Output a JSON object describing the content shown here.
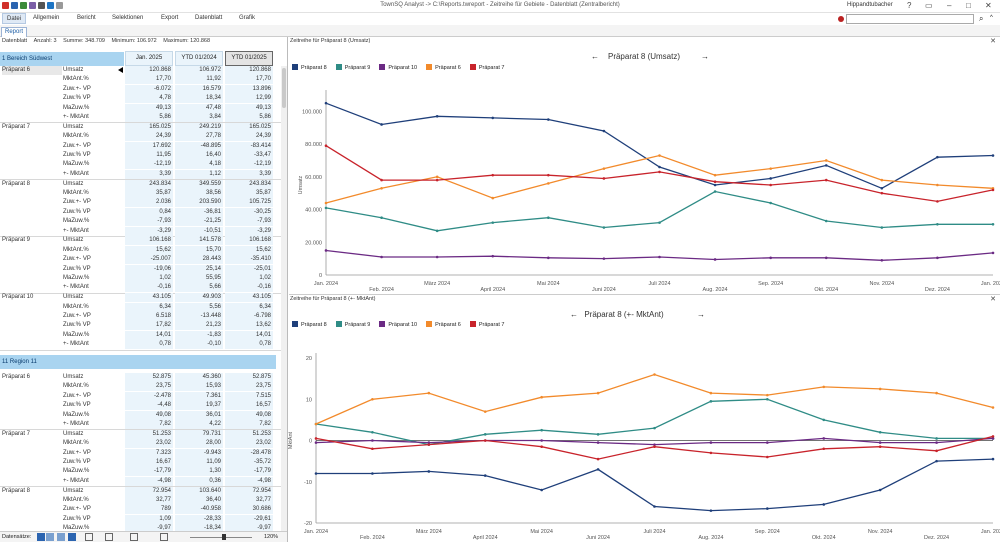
{
  "titlebar": {
    "title": "TownSQ Analyst -> C:\\Reports.twreport - Zeitreihe für Gebiete - Datenblatt (Zentralbericht)",
    "user": "Hippandtubacher"
  },
  "menu": [
    "Datei",
    "Allgemein",
    "Bericht",
    "Selektionen",
    "Export",
    "Datenblatt",
    "Grafik"
  ],
  "tabs": {
    "report": "Report"
  },
  "stats": {
    "label": "Datenblatt",
    "count": "Anzahl: 3",
    "sum": "Summe: 348.709",
    "min": "Minimum: 106.972",
    "max": "Maximum: 120.868"
  },
  "table": {
    "columns": [
      "Jan. 2025",
      "YTD 01/2024",
      "YTD 01/2025"
    ],
    "region1": "1 Bereich Südwest",
    "region2": "11 Region 11",
    "group1": [
      {
        "product": "Präparat 6",
        "rows": [
          [
            "Umsatz",
            "120.868",
            "106.972",
            "120.868"
          ],
          [
            "MktAnt.%",
            "17,70",
            "11,92",
            "17,70"
          ],
          [
            "Zuw.+- VP",
            "-6.072",
            "16.579",
            "13.896"
          ],
          [
            "Zuw.% VP",
            "4,78",
            "18,34",
            "12,99"
          ],
          [
            "MaZuw.%",
            "49,13",
            "47,48",
            "49,13"
          ],
          [
            "+- MktAnt",
            "5,86",
            "3,84",
            "5,86"
          ]
        ]
      },
      {
        "product": "Präparat 7",
        "rows": [
          [
            "Umsatz",
            "165.025",
            "249.219",
            "165.025"
          ],
          [
            "MktAnt.%",
            "24,39",
            "27,78",
            "24,39"
          ],
          [
            "Zuw.+- VP",
            "17.692",
            "-48.895",
            "-83.414"
          ],
          [
            "Zuw.% VP",
            "11,95",
            "16,40",
            "-33,47"
          ],
          [
            "MaZuw.%",
            "-12,19",
            "4,18",
            "-12,19"
          ],
          [
            "+- MktAnt",
            "3,39",
            "1,12",
            "3,39"
          ]
        ]
      },
      {
        "product": "Präparat 8",
        "rows": [
          [
            "Umsatz",
            "243.834",
            "349.559",
            "243.834"
          ],
          [
            "MktAnt.%",
            "35,87",
            "38,56",
            "35,87"
          ],
          [
            "Zuw.+- VP",
            "2.036",
            "203.590",
            "105.725"
          ],
          [
            "Zuw.% VP",
            "0,84",
            "-36,81",
            "-30,25"
          ],
          [
            "MaZuw.%",
            "-7,93",
            "-21,25",
            "-7,93"
          ],
          [
            "+- MktAnt",
            "-3,29",
            "-10,51",
            "-3,29"
          ]
        ]
      },
      {
        "product": "Präparat 9",
        "rows": [
          [
            "Umsatz",
            "106.168",
            "141.578",
            "106.168"
          ],
          [
            "MktAnt.%",
            "15,62",
            "15,70",
            "15,62"
          ],
          [
            "Zuw.+- VP",
            "-25.007",
            "28.443",
            "-35.410"
          ],
          [
            "Zuw.% VP",
            "-19,06",
            "25,14",
            "-25,01"
          ],
          [
            "MaZuw.%",
            "1,02",
            "55,95",
            "1,02"
          ],
          [
            "+- MktAnt",
            "-0,16",
            "5,66",
            "-0,16"
          ]
        ]
      },
      {
        "product": "Präparat 10",
        "rows": [
          [
            "Umsatz",
            "43.105",
            "49.903",
            "43.105"
          ],
          [
            "MktAnt.%",
            "6,34",
            "5,56",
            "6,34"
          ],
          [
            "Zuw.+- VP",
            "6.518",
            "-13.448",
            "-6.798"
          ],
          [
            "Zuw.% VP",
            "17,82",
            "21,23",
            "13,62"
          ],
          [
            "MaZuw.%",
            "14,01",
            "-1,83",
            "14,01"
          ],
          [
            "+- MktAnt",
            "0,78",
            "-0,10",
            "0,78"
          ]
        ]
      }
    ],
    "group2": [
      {
        "product": "Präparat 6",
        "rows": [
          [
            "Umsatz",
            "52.875",
            "45.360",
            "52.875"
          ],
          [
            "MktAnt.%",
            "23,75",
            "15,93",
            "23,75"
          ],
          [
            "Zuw.+- VP",
            "-2.478",
            "7.361",
            "7.515"
          ],
          [
            "Zuw.% VP",
            "-4,48",
            "19,37",
            "16,57"
          ],
          [
            "MaZuw.%",
            "49,08",
            "36,01",
            "49,08"
          ],
          [
            "+- MktAnt",
            "7,82",
            "4,22",
            "7,82"
          ]
        ]
      },
      {
        "product": "Präparat 7",
        "rows": [
          [
            "Umsatz",
            "51.253",
            "79.731",
            "51.253"
          ],
          [
            "MktAnt.%",
            "23,02",
            "28,00",
            "23,02"
          ],
          [
            "Zuw.+- VP",
            "7.323",
            "-9.943",
            "-28.478"
          ],
          [
            "Zuw.% VP",
            "16,67",
            "11,09",
            "-35,72"
          ],
          [
            "MaZuw.%",
            "-17,79",
            "1,30",
            "-17,79"
          ],
          [
            "+- MktAnt",
            "-4,98",
            "0,36",
            "-4,98"
          ]
        ]
      },
      {
        "product": "Präparat 8",
        "rows": [
          [
            "Umsatz",
            "72.954",
            "103.640",
            "72.954"
          ],
          [
            "MktAnt.%",
            "32,77",
            "36,40",
            "32,77"
          ],
          [
            "Zuw.+- VP",
            "789",
            "-40.958",
            "30.686"
          ],
          [
            "Zuw.% VP",
            "1,09",
            "-28,33",
            "-29,61"
          ],
          [
            "MaZuw.%",
            "-9,97",
            "-18,34",
            "-9,97"
          ]
        ]
      }
    ],
    "bottom": {
      "label": "Datensätze:",
      "zoom": "120%"
    }
  },
  "chart_top": {
    "panel_title": "Zeitreihe für Präparat 8 (Umsatz)",
    "title": "Präparat 8 (Umsatz)",
    "ylabel": "Umsatz",
    "legend": [
      {
        "name": "Präparat 8",
        "color": "#1f3f7a"
      },
      {
        "name": "Präparat 9",
        "color": "#2f8c86"
      },
      {
        "name": "Präparat 10",
        "color": "#6b2a84"
      },
      {
        "name": "Präparat 6",
        "color": "#f28a2b"
      },
      {
        "name": "Präparat 7",
        "color": "#c8232b"
      }
    ],
    "yticks": [
      "0",
      "20.000",
      "40.000",
      "60.000",
      "80.000",
      "100.000"
    ]
  },
  "chart_bottom": {
    "panel_title": "Zeitreihe für Präparat 8 (+- MktAnt)",
    "title": "Präparat 8 (+- MktAnt)",
    "ylabel": "MktAnt",
    "legend": [
      {
        "name": "Präparat 8",
        "color": "#1f3f7a"
      },
      {
        "name": "Präparat 9",
        "color": "#2f8c86"
      },
      {
        "name": "Präparat 10",
        "color": "#6b2a84"
      },
      {
        "name": "Präparat 6",
        "color": "#f28a2b"
      },
      {
        "name": "Präparat 7",
        "color": "#c8232b"
      }
    ],
    "yticks": [
      "-20",
      "-10",
      "0",
      "10",
      "20"
    ]
  },
  "chart_data": [
    {
      "type": "line",
      "title": "Präparat 8 (Umsatz)",
      "ylabel": "Umsatz",
      "ylim": [
        0,
        110000
      ],
      "x": [
        "Jan. 2024",
        "Feb. 2024",
        "März 2024",
        "April 2024",
        "Mai 2024",
        "Juni 2024",
        "Juli 2024",
        "Aug. 2024",
        "Sep. 2024",
        "Okt. 2024",
        "Nov. 2024",
        "Dez. 2024",
        "Jan. 2025"
      ],
      "series": [
        {
          "name": "Präparat 8",
          "values": [
            105000,
            92000,
            97000,
            96000,
            95000,
            88000,
            66000,
            55000,
            59000,
            67000,
            53000,
            72000,
            73000
          ]
        },
        {
          "name": "Präparat 9",
          "values": [
            41000,
            35000,
            27000,
            32000,
            35000,
            29000,
            32000,
            51000,
            44000,
            33000,
            29000,
            31000,
            31000
          ]
        },
        {
          "name": "Präparat 10",
          "values": [
            15000,
            11000,
            11000,
            11500,
            10500,
            10000,
            11000,
            9500,
            10500,
            10500,
            9000,
            10500,
            13500
          ]
        },
        {
          "name": "Präparat 6",
          "values": [
            44000,
            53000,
            60000,
            47000,
            56000,
            65000,
            73000,
            61000,
            65000,
            70000,
            58000,
            55000,
            53000
          ]
        },
        {
          "name": "Präparat 7",
          "values": [
            79000,
            58000,
            58000,
            61000,
            61000,
            59000,
            63000,
            57000,
            55000,
            58000,
            50000,
            45000,
            52000
          ]
        }
      ]
    },
    {
      "type": "line",
      "title": "Präparat 8 (+- MktAnt)",
      "ylabel": "MktAnt",
      "ylim": [
        -20,
        20
      ],
      "x": [
        "Jan. 2024",
        "Feb. 2024",
        "März 2024",
        "April 2024",
        "Mai 2024",
        "Juni 2024",
        "Juli 2024",
        "Aug. 2024",
        "Sep. 2024",
        "Okt. 2024",
        "Nov. 2024",
        "Dez. 2024",
        "Jan. 2025"
      ],
      "series": [
        {
          "name": "Präparat 8",
          "values": [
            -8,
            -8,
            -7.5,
            -8.5,
            -12,
            -7,
            -16,
            -17,
            -16.5,
            -15.5,
            -12,
            -5,
            -4.5
          ]
        },
        {
          "name": "Präparat 9",
          "values": [
            4,
            2,
            -1,
            1.5,
            2.5,
            1.5,
            3,
            9.5,
            10,
            5,
            2,
            0.5,
            0.5
          ]
        },
        {
          "name": "Präparat 10",
          "values": [
            -0.5,
            0,
            -0.5,
            0,
            0,
            -0.5,
            -1,
            -0.5,
            -0.5,
            0.5,
            -0.5,
            -0.5,
            0.5
          ]
        },
        {
          "name": "Präparat 6",
          "values": [
            4,
            10,
            11.5,
            7,
            10.5,
            11.5,
            16,
            11.5,
            11,
            13,
            12.5,
            11.5,
            8
          ]
        },
        {
          "name": "Präparat 7",
          "values": [
            0.5,
            -2,
            -1,
            0,
            -1.5,
            -4.5,
            -1.5,
            -3,
            -4,
            -2,
            -1.5,
            -2.5,
            1
          ]
        }
      ]
    }
  ]
}
